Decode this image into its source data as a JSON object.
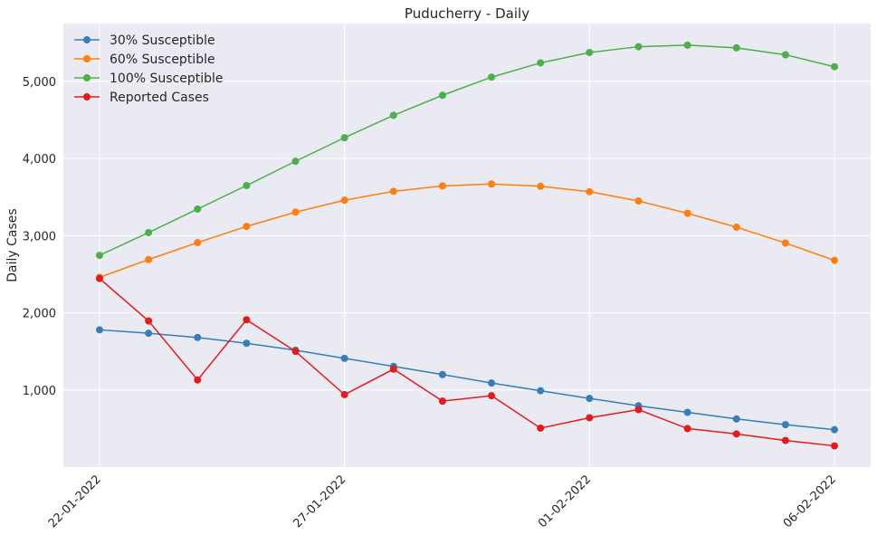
{
  "chart_data": {
    "type": "line",
    "title": "Puducherry - Daily",
    "xlabel": "",
    "ylabel": "Daily Cases",
    "x": [
      "22-01-2022",
      "23-01-2022",
      "24-01-2022",
      "25-01-2022",
      "26-01-2022",
      "27-01-2022",
      "28-01-2022",
      "29-01-2022",
      "30-01-2022",
      "31-01-2022",
      "01-02-2022",
      "02-02-2022",
      "03-02-2022",
      "04-02-2022",
      "05-02-2022",
      "06-02-2022"
    ],
    "x_tick_labels": [
      "22-01-2022",
      "27-01-2022",
      "01-02-2022",
      "06-02-2022"
    ],
    "x_tick_indices": [
      0,
      5,
      10,
      15
    ],
    "ylim": [
      0,
      5750
    ],
    "y_ticks": [
      1000,
      2000,
      3000,
      4000,
      5000
    ],
    "y_tick_labels": [
      "1,000",
      "2,000",
      "3,000",
      "4,000",
      "5,000"
    ],
    "grid": true,
    "legend_position": "top-left",
    "background": "#eaeaf2",
    "series": [
      {
        "name": "30% Susceptible",
        "color": "#377eb8",
        "values": [
          1780,
          1735,
          1680,
          1605,
          1515,
          1410,
          1305,
          1200,
          1090,
          990,
          890,
          795,
          710,
          625,
          550,
          485
        ]
      },
      {
        "name": "60% Susceptible",
        "color": "#ff7f0e",
        "values": [
          2460,
          2690,
          2910,
          3120,
          3305,
          3460,
          3575,
          3645,
          3670,
          3640,
          3570,
          3450,
          3290,
          3110,
          2905,
          2680
        ]
      },
      {
        "name": "100% Susceptible",
        "color": "#4daf4a",
        "values": [
          2745,
          3040,
          3345,
          3650,
          3965,
          4270,
          4560,
          4820,
          5055,
          5240,
          5375,
          5450,
          5470,
          5435,
          5345,
          5190
        ]
      },
      {
        "name": "Reported Cases",
        "color": "#e41a1c",
        "values": [
          2445,
          1895,
          1130,
          1910,
          1500,
          940,
          1270,
          855,
          925,
          505,
          640,
          745,
          500,
          430,
          345,
          275
        ]
      }
    ]
  }
}
